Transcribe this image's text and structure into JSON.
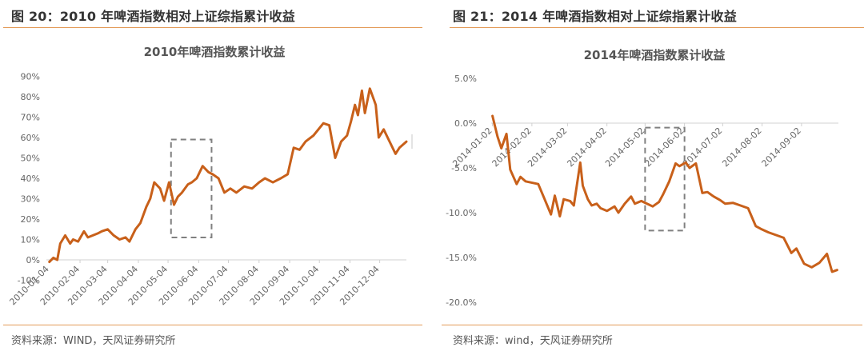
{
  "figures": [
    {
      "title": "图 20：2010 年啤酒指数相对上证综指累计收益",
      "source": "资料来源：WIND，天风证券研究所"
    },
    {
      "title": "图 21：2014 年啤酒指数相对上证综指累计收益",
      "source": "资料来源：wind，天风证券研究所"
    }
  ],
  "colors": {
    "line": "#c8601a",
    "rule": "#e39a58",
    "highlight_box": "#808080",
    "axis": "#d0d0d0"
  },
  "chart_data": [
    {
      "type": "line",
      "title": "2010年啤酒指数累计收益",
      "xlabel": "",
      "ylabel": "",
      "ylim": [
        -0.1,
        0.9
      ],
      "yticks": [
        "90%",
        "80%",
        "70%",
        "60%",
        "50%",
        "40%",
        "30%",
        "20%",
        "10%",
        "0%",
        "-10%"
      ],
      "xticks": [
        "2010-01-04",
        "2010-02-04",
        "2010-03-04",
        "2010-04-04",
        "2010-05-04",
        "2010-06-04",
        "2010-07-04",
        "2010-08-04",
        "2010-09-04",
        "2010-10-04",
        "2010-11-04",
        "2010-12-04"
      ],
      "grid": false,
      "legend": null,
      "annotations": [
        {
          "type": "dashed-rect",
          "x_from": "2010-05-07",
          "x_to": "2010-06-17",
          "y_from": 0.11,
          "y_to": 0.59
        }
      ],
      "series": [
        {
          "name": "2010年啤酒指数累计收益",
          "x": [
            "2010-01-04",
            "2010-01-08",
            "2010-01-12",
            "2010-01-15",
            "2010-01-20",
            "2010-01-25",
            "2010-01-28",
            "2010-02-02",
            "2010-02-08",
            "2010-02-12",
            "2010-02-22",
            "2010-02-26",
            "2010-03-04",
            "2010-03-10",
            "2010-03-16",
            "2010-03-22",
            "2010-03-26",
            "2010-04-01",
            "2010-04-06",
            "2010-04-12",
            "2010-04-16",
            "2010-04-20",
            "2010-04-26",
            "2010-04-30",
            "2010-05-05",
            "2010-05-10",
            "2010-05-14",
            "2010-05-18",
            "2010-05-24",
            "2010-05-28",
            "2010-06-02",
            "2010-06-08",
            "2010-06-14",
            "2010-06-18",
            "2010-06-24",
            "2010-06-30",
            "2010-07-06",
            "2010-07-12",
            "2010-07-20",
            "2010-07-28",
            "2010-08-04",
            "2010-08-10",
            "2010-08-18",
            "2010-08-26",
            "2010-09-02",
            "2010-09-08",
            "2010-09-14",
            "2010-09-20",
            "2010-09-28",
            "2010-10-08",
            "2010-10-14",
            "2010-10-20",
            "2010-10-26",
            "2010-11-01",
            "2010-11-05",
            "2010-11-09",
            "2010-11-12",
            "2010-11-16",
            "2010-11-19",
            "2010-11-24",
            "2010-11-30",
            "2010-12-03",
            "2010-12-08",
            "2010-12-14",
            "2010-12-20",
            "2010-12-24",
            "2010-12-31"
          ],
          "values": [
            -0.01,
            0.01,
            0.0,
            0.08,
            0.12,
            0.08,
            0.1,
            0.09,
            0.14,
            0.11,
            0.13,
            0.14,
            0.15,
            0.12,
            0.1,
            0.11,
            0.09,
            0.15,
            0.18,
            0.26,
            0.3,
            0.38,
            0.35,
            0.29,
            0.38,
            0.27,
            0.31,
            0.33,
            0.37,
            0.38,
            0.4,
            0.46,
            0.43,
            0.42,
            0.4,
            0.33,
            0.35,
            0.33,
            0.36,
            0.35,
            0.38,
            0.4,
            0.38,
            0.4,
            0.42,
            0.55,
            0.54,
            0.58,
            0.61,
            0.67,
            0.66,
            0.5,
            0.58,
            0.61,
            0.68,
            0.76,
            0.71,
            0.83,
            0.72,
            0.84,
            0.76,
            0.6,
            0.64,
            0.58,
            0.52,
            0.55,
            0.58
          ]
        }
      ]
    },
    {
      "type": "line",
      "title": "2014年啤酒指数累计收益",
      "xlabel": "",
      "ylabel": "",
      "ylim": [
        -0.2,
        0.05
      ],
      "yticks": [
        "5.0%",
        "0.0%",
        "-5.0%",
        "-10.0%",
        "-15.0%",
        "-20.0%"
      ],
      "xticks": [
        "2014-01-02",
        "2014-02-02",
        "2014-03-02",
        "2014-04-02",
        "2014-05-02",
        "2014-06-02",
        "2014-07-02",
        "2014-08-02",
        "2014-09-02"
      ],
      "grid": false,
      "legend": null,
      "annotations": [
        {
          "type": "dashed-rect",
          "x_from": "2014-05-02",
          "x_to": "2014-06-02",
          "y_from": -0.12,
          "y_to": -0.005
        }
      ],
      "series": [
        {
          "name": "2014年啤酒指数累计收益",
          "x": [
            "2014-01-02",
            "2014-01-06",
            "2014-01-09",
            "2014-01-13",
            "2014-01-16",
            "2014-01-21",
            "2014-01-24",
            "2014-01-28",
            "2014-02-07",
            "2014-02-12",
            "2014-02-17",
            "2014-02-20",
            "2014-02-24",
            "2014-02-27",
            "2014-03-04",
            "2014-03-07",
            "2014-03-12",
            "2014-03-14",
            "2014-03-18",
            "2014-03-21",
            "2014-03-25",
            "2014-03-28",
            "2014-04-02",
            "2014-04-08",
            "2014-04-11",
            "2014-04-16",
            "2014-04-21",
            "2014-04-24",
            "2014-04-29",
            "2014-05-05",
            "2014-05-08",
            "2014-05-13",
            "2014-05-16",
            "2014-05-21",
            "2014-05-26",
            "2014-05-29",
            "2014-06-03",
            "2014-06-06",
            "2014-06-11",
            "2014-06-16",
            "2014-06-20",
            "2014-06-25",
            "2014-06-30",
            "2014-07-04",
            "2014-07-10",
            "2014-07-16",
            "2014-07-22",
            "2014-07-28",
            "2014-08-01",
            "2014-08-07",
            "2014-08-13",
            "2014-08-19",
            "2014-08-25",
            "2014-08-29",
            "2014-09-04",
            "2014-09-10",
            "2014-09-16",
            "2014-09-22",
            "2014-09-26",
            "2014-09-30"
          ],
          "values": [
            0.008,
            -0.015,
            -0.028,
            -0.012,
            -0.052,
            -0.068,
            -0.06,
            -0.065,
            -0.068,
            -0.085,
            -0.102,
            -0.081,
            -0.104,
            -0.085,
            -0.087,
            -0.092,
            -0.044,
            -0.07,
            -0.085,
            -0.092,
            -0.09,
            -0.095,
            -0.098,
            -0.093,
            -0.1,
            -0.09,
            -0.082,
            -0.09,
            -0.087,
            -0.091,
            -0.093,
            -0.088,
            -0.08,
            -0.065,
            -0.045,
            -0.048,
            -0.044,
            -0.05,
            -0.045,
            -0.078,
            -0.077,
            -0.082,
            -0.086,
            -0.09,
            -0.089,
            -0.092,
            -0.095,
            -0.115,
            -0.118,
            -0.122,
            -0.125,
            -0.128,
            -0.145,
            -0.14,
            -0.157,
            -0.161,
            -0.156,
            -0.146,
            -0.166,
            -0.164
          ]
        }
      ]
    }
  ]
}
